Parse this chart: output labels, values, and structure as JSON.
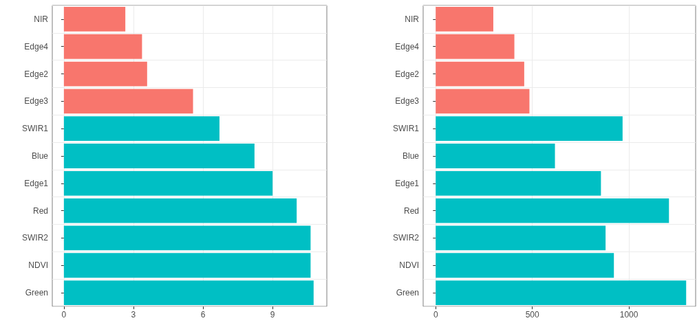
{
  "chart_data": [
    {
      "type": "bar",
      "orientation": "horizontal",
      "categories": [
        "NIR",
        "Edge4",
        "Edge2",
        "Edge3",
        "SWIR1",
        "Blue",
        "Edge1",
        "Red",
        "SWIR2",
        "NDVI",
        "Green"
      ],
      "values": [
        2.65,
        3.37,
        3.59,
        5.57,
        6.71,
        8.22,
        9.0,
        10.04,
        10.64,
        10.64,
        10.77
      ],
      "colors": [
        "#f8766d",
        "#f8766d",
        "#f8766d",
        "#f8766d",
        "#00bfc4",
        "#00bfc4",
        "#00bfc4",
        "#00bfc4",
        "#00bfc4",
        "#00bfc4",
        "#00bfc4"
      ],
      "xlim": [
        -0.5,
        11.34
      ],
      "xticks": [
        0,
        3,
        6,
        9
      ],
      "grid": true
    },
    {
      "type": "bar",
      "orientation": "horizontal",
      "categories": [
        "NIR",
        "Edge4",
        "Edge2",
        "Edge3",
        "SWIR1",
        "Blue",
        "Edge1",
        "Red",
        "SWIR2",
        "NDVI",
        "Green"
      ],
      "values": [
        298,
        407,
        458,
        485,
        967,
        617,
        855,
        1207,
        879,
        922,
        1296
      ],
      "colors": [
        "#f8766d",
        "#f8766d",
        "#f8766d",
        "#f8766d",
        "#00bfc4",
        "#00bfc4",
        "#00bfc4",
        "#00bfc4",
        "#00bfc4",
        "#00bfc4",
        "#00bfc4"
      ],
      "xlim": [
        -65,
        1345
      ],
      "xticks": [
        0,
        500,
        1000
      ],
      "grid": true
    }
  ]
}
